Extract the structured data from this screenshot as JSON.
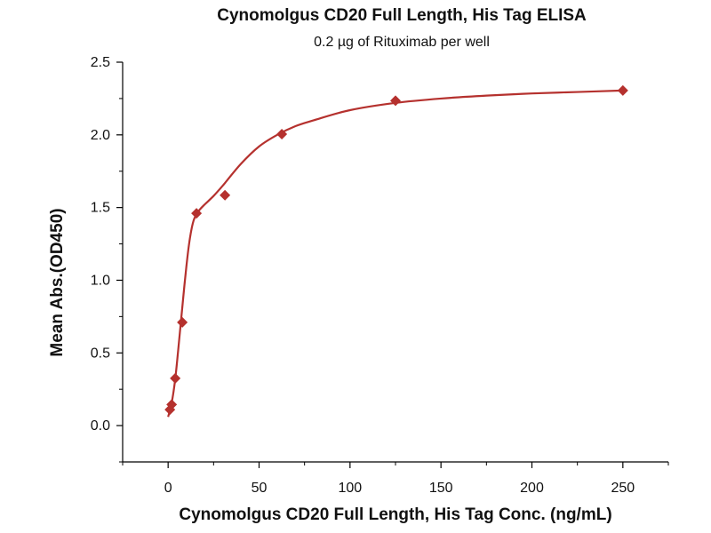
{
  "chart_data": {
    "type": "scatter",
    "title": "Cynomolgus CD20 Full Length, His Tag ELISA",
    "subtitle": "0.2 µg of Rituximab per well",
    "xlabel": "Cynomolgus CD20 Full Length, His Tag Conc. (ng/mL)",
    "ylabel": "Mean Abs.(OD450)",
    "xlim": [
      -25,
      275
    ],
    "ylim": [
      -0.25,
      2.5
    ],
    "xticks": [
      0,
      50,
      100,
      150,
      200,
      250
    ],
    "yticks": [
      0.0,
      0.5,
      1.0,
      1.5,
      2.0,
      2.5
    ],
    "xtick_labels": [
      "0",
      "50",
      "100",
      "150",
      "200",
      "250"
    ],
    "ytick_labels": [
      "0.0",
      "0.5",
      "1.0",
      "1.5",
      "2.0",
      "2.5"
    ],
    "grid": false,
    "color": "#b5312e",
    "series": [
      {
        "marker": "diamond",
        "x": [
          0.98,
          1.95,
          3.9,
          7.8,
          15.6,
          31.25,
          62.5,
          125,
          250
        ],
        "y": [
          0.11,
          0.145,
          0.325,
          0.71,
          1.46,
          1.585,
          2.005,
          2.235,
          2.305
        ]
      }
    ],
    "fit_curve": {
      "x": [
        0,
        1,
        2,
        3,
        4,
        5,
        6,
        7,
        8,
        9,
        10,
        11,
        12,
        13,
        14,
        15,
        17,
        20,
        25,
        30,
        40,
        50,
        60,
        70,
        80,
        100,
        125,
        150,
        175,
        200,
        225,
        250
      ],
      "y": [
        0.06,
        0.105,
        0.16,
        0.235,
        0.33,
        0.45,
        0.58,
        0.71,
        0.84,
        0.97,
        1.09,
        1.2,
        1.29,
        1.36,
        1.41,
        1.44,
        1.48,
        1.52,
        1.58,
        1.65,
        1.8,
        1.92,
        2.0,
        2.06,
        2.1,
        2.17,
        2.22,
        2.25,
        2.27,
        2.285,
        2.295,
        2.305
      ]
    }
  }
}
